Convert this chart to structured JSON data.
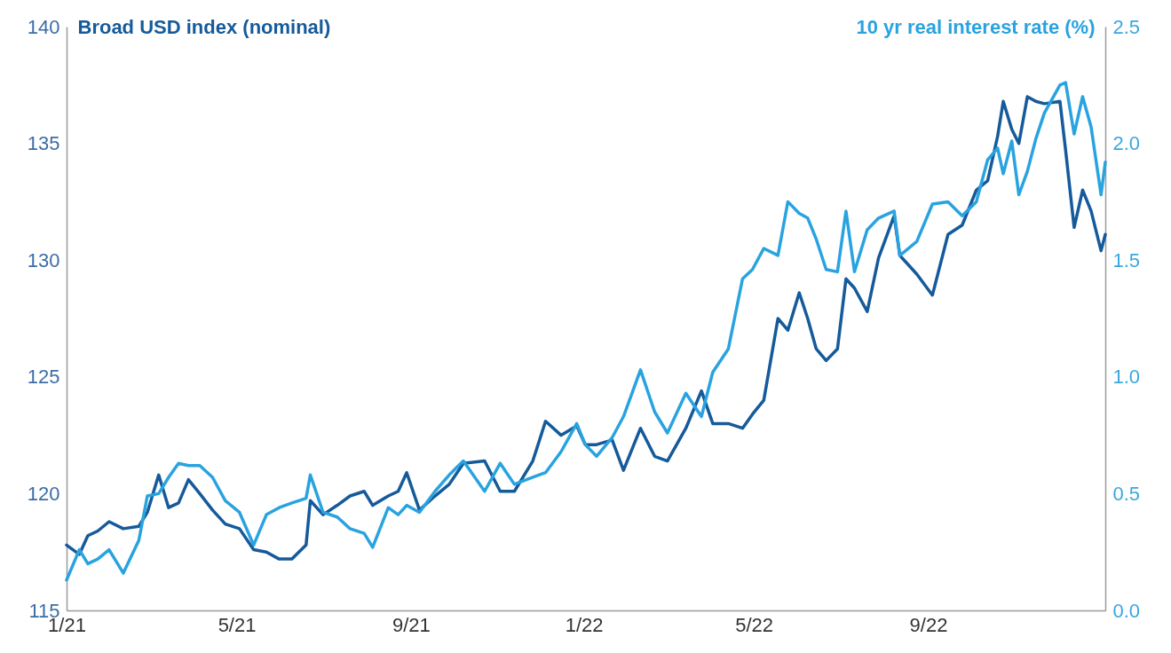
{
  "chart_data": {
    "type": "line",
    "ylabel": "Broad USD index (nominal)",
    "y2label": "10 yr real interest rate (%)",
    "x": [
      "2021-01-01",
      "2021-01-10",
      "2021-01-16",
      "2021-01-23",
      "2021-01-31",
      "2021-02-10",
      "2021-02-21",
      "2021-02-27",
      "2021-03-07",
      "2021-03-14",
      "2021-03-21",
      "2021-03-28",
      "2021-04-05",
      "2021-04-14",
      "2021-04-23",
      "2021-05-03",
      "2021-05-13",
      "2021-05-22",
      "2021-05-31",
      "2021-06-09",
      "2021-06-19",
      "2021-06-22",
      "2021-07-01",
      "2021-07-11",
      "2021-07-20",
      "2021-07-30",
      "2021-08-05",
      "2021-08-16",
      "2021-08-23",
      "2021-08-29",
      "2021-09-07",
      "2021-09-18",
      "2021-09-28",
      "2021-10-08",
      "2021-10-23",
      "2021-11-03",
      "2021-11-13",
      "2021-11-26",
      "2021-12-05",
      "2021-12-16",
      "2021-12-27",
      "2022-01-02",
      "2022-01-10",
      "2022-01-21",
      "2022-01-29",
      "2022-02-10",
      "2022-02-20",
      "2022-03-01",
      "2022-03-14",
      "2022-03-25",
      "2022-04-02",
      "2022-04-13",
      "2022-04-23",
      "2022-04-30",
      "2022-05-08",
      "2022-05-18",
      "2022-05-25",
      "2022-06-02",
      "2022-06-08",
      "2022-06-14",
      "2022-06-21",
      "2022-06-29",
      "2022-07-05",
      "2022-07-11",
      "2022-07-20",
      "2022-07-28",
      "2022-08-08",
      "2022-08-12",
      "2022-08-24",
      "2022-09-04",
      "2022-09-15",
      "2022-09-25",
      "2022-10-05",
      "2022-10-13",
      "2022-10-20",
      "2022-10-24",
      "2022-10-30",
      "2022-11-04",
      "2022-11-10",
      "2022-11-16",
      "2022-11-22",
      "2022-12-03",
      "2022-12-07",
      "2022-12-13",
      "2022-12-19",
      "2022-12-25",
      "2023-01-01",
      "2023-01-04"
    ],
    "xlim": [
      "2021-01-01",
      "2023-01-04"
    ],
    "xticks": [
      {
        "value": "2021-01-01",
        "label": "1/21"
      },
      {
        "value": "2021-05-01",
        "label": "5/21"
      },
      {
        "value": "2021-09-01",
        "label": "9/21"
      },
      {
        "value": "2022-01-01",
        "label": "1/22"
      },
      {
        "value": "2022-05-01",
        "label": "5/22"
      },
      {
        "value": "2022-09-01",
        "label": "9/22"
      }
    ],
    "ylim": [
      115,
      140
    ],
    "yticks": [
      115,
      120,
      125,
      130,
      135,
      140
    ],
    "y2lim": [
      0,
      2.5
    ],
    "y2ticks": [
      {
        "value": 0,
        "label": "0.0"
      },
      {
        "value": 0.5,
        "label": "0.5"
      },
      {
        "value": 1,
        "label": "1.0"
      },
      {
        "value": 1.5,
        "label": "1.5"
      },
      {
        "value": 2,
        "label": "2.0"
      },
      {
        "value": 2.5,
        "label": "2.5"
      }
    ],
    "grid": false,
    "line_style": "solid",
    "marker": "none",
    "series": [
      {
        "color": "#155a9a",
        "values": [
          117.8,
          117.4,
          118.2,
          118.4,
          118.8,
          118.5,
          118.6,
          119.2,
          120.8,
          119.4,
          119.6,
          120.6,
          120.0,
          119.3,
          118.7,
          118.5,
          117.6,
          117.5,
          117.2,
          117.2,
          117.8,
          119.7,
          119.1,
          119.5,
          119.9,
          120.1,
          119.5,
          119.9,
          120.1,
          120.9,
          119.3,
          119.9,
          120.4,
          121.3,
          121.4,
          120.1,
          120.1,
          121.4,
          123.1,
          122.5,
          122.9,
          122.1,
          122.1,
          122.3,
          121.0,
          122.8,
          121.6,
          121.4,
          122.8,
          124.4,
          123.0,
          123.0,
          122.8,
          123.4,
          124.0,
          127.5,
          127.0,
          128.6,
          127.5,
          126.2,
          125.7,
          126.2,
          129.2,
          128.8,
          127.8,
          130.1,
          131.9,
          130.2,
          129.4,
          128.5,
          131.1,
          131.5,
          133.0,
          133.4,
          135.3,
          136.8,
          135.6,
          135.0,
          137.0,
          136.8,
          136.7,
          136.8,
          134.7,
          131.4,
          133.0,
          132.1,
          130.4,
          131.1
        ]
      },
      {
        "color": "#29a3e0",
        "axis": "y2",
        "values": [
          0.13,
          0.26,
          0.2,
          0.22,
          0.26,
          0.16,
          0.3,
          0.49,
          0.5,
          0.57,
          0.63,
          0.62,
          0.62,
          0.57,
          0.47,
          0.42,
          0.28,
          0.41,
          0.44,
          0.46,
          0.48,
          0.58,
          0.42,
          0.4,
          0.35,
          0.33,
          0.27,
          0.44,
          0.41,
          0.45,
          0.42,
          0.51,
          0.58,
          0.64,
          0.51,
          0.63,
          0.54,
          0.57,
          0.59,
          0.68,
          0.8,
          0.71,
          0.66,
          0.74,
          0.83,
          1.03,
          0.85,
          0.76,
          0.93,
          0.83,
          1.02,
          1.12,
          1.42,
          1.46,
          1.55,
          1.52,
          1.75,
          1.7,
          1.68,
          1.59,
          1.46,
          1.45,
          1.71,
          1.45,
          1.63,
          1.68,
          1.71,
          1.52,
          1.58,
          1.74,
          1.75,
          1.69,
          1.75,
          1.93,
          1.98,
          1.87,
          2.01,
          1.78,
          1.88,
          2.02,
          2.13,
          2.25,
          2.26,
          2.04,
          2.2,
          2.07,
          1.78,
          1.92
        ]
      }
    ]
  }
}
